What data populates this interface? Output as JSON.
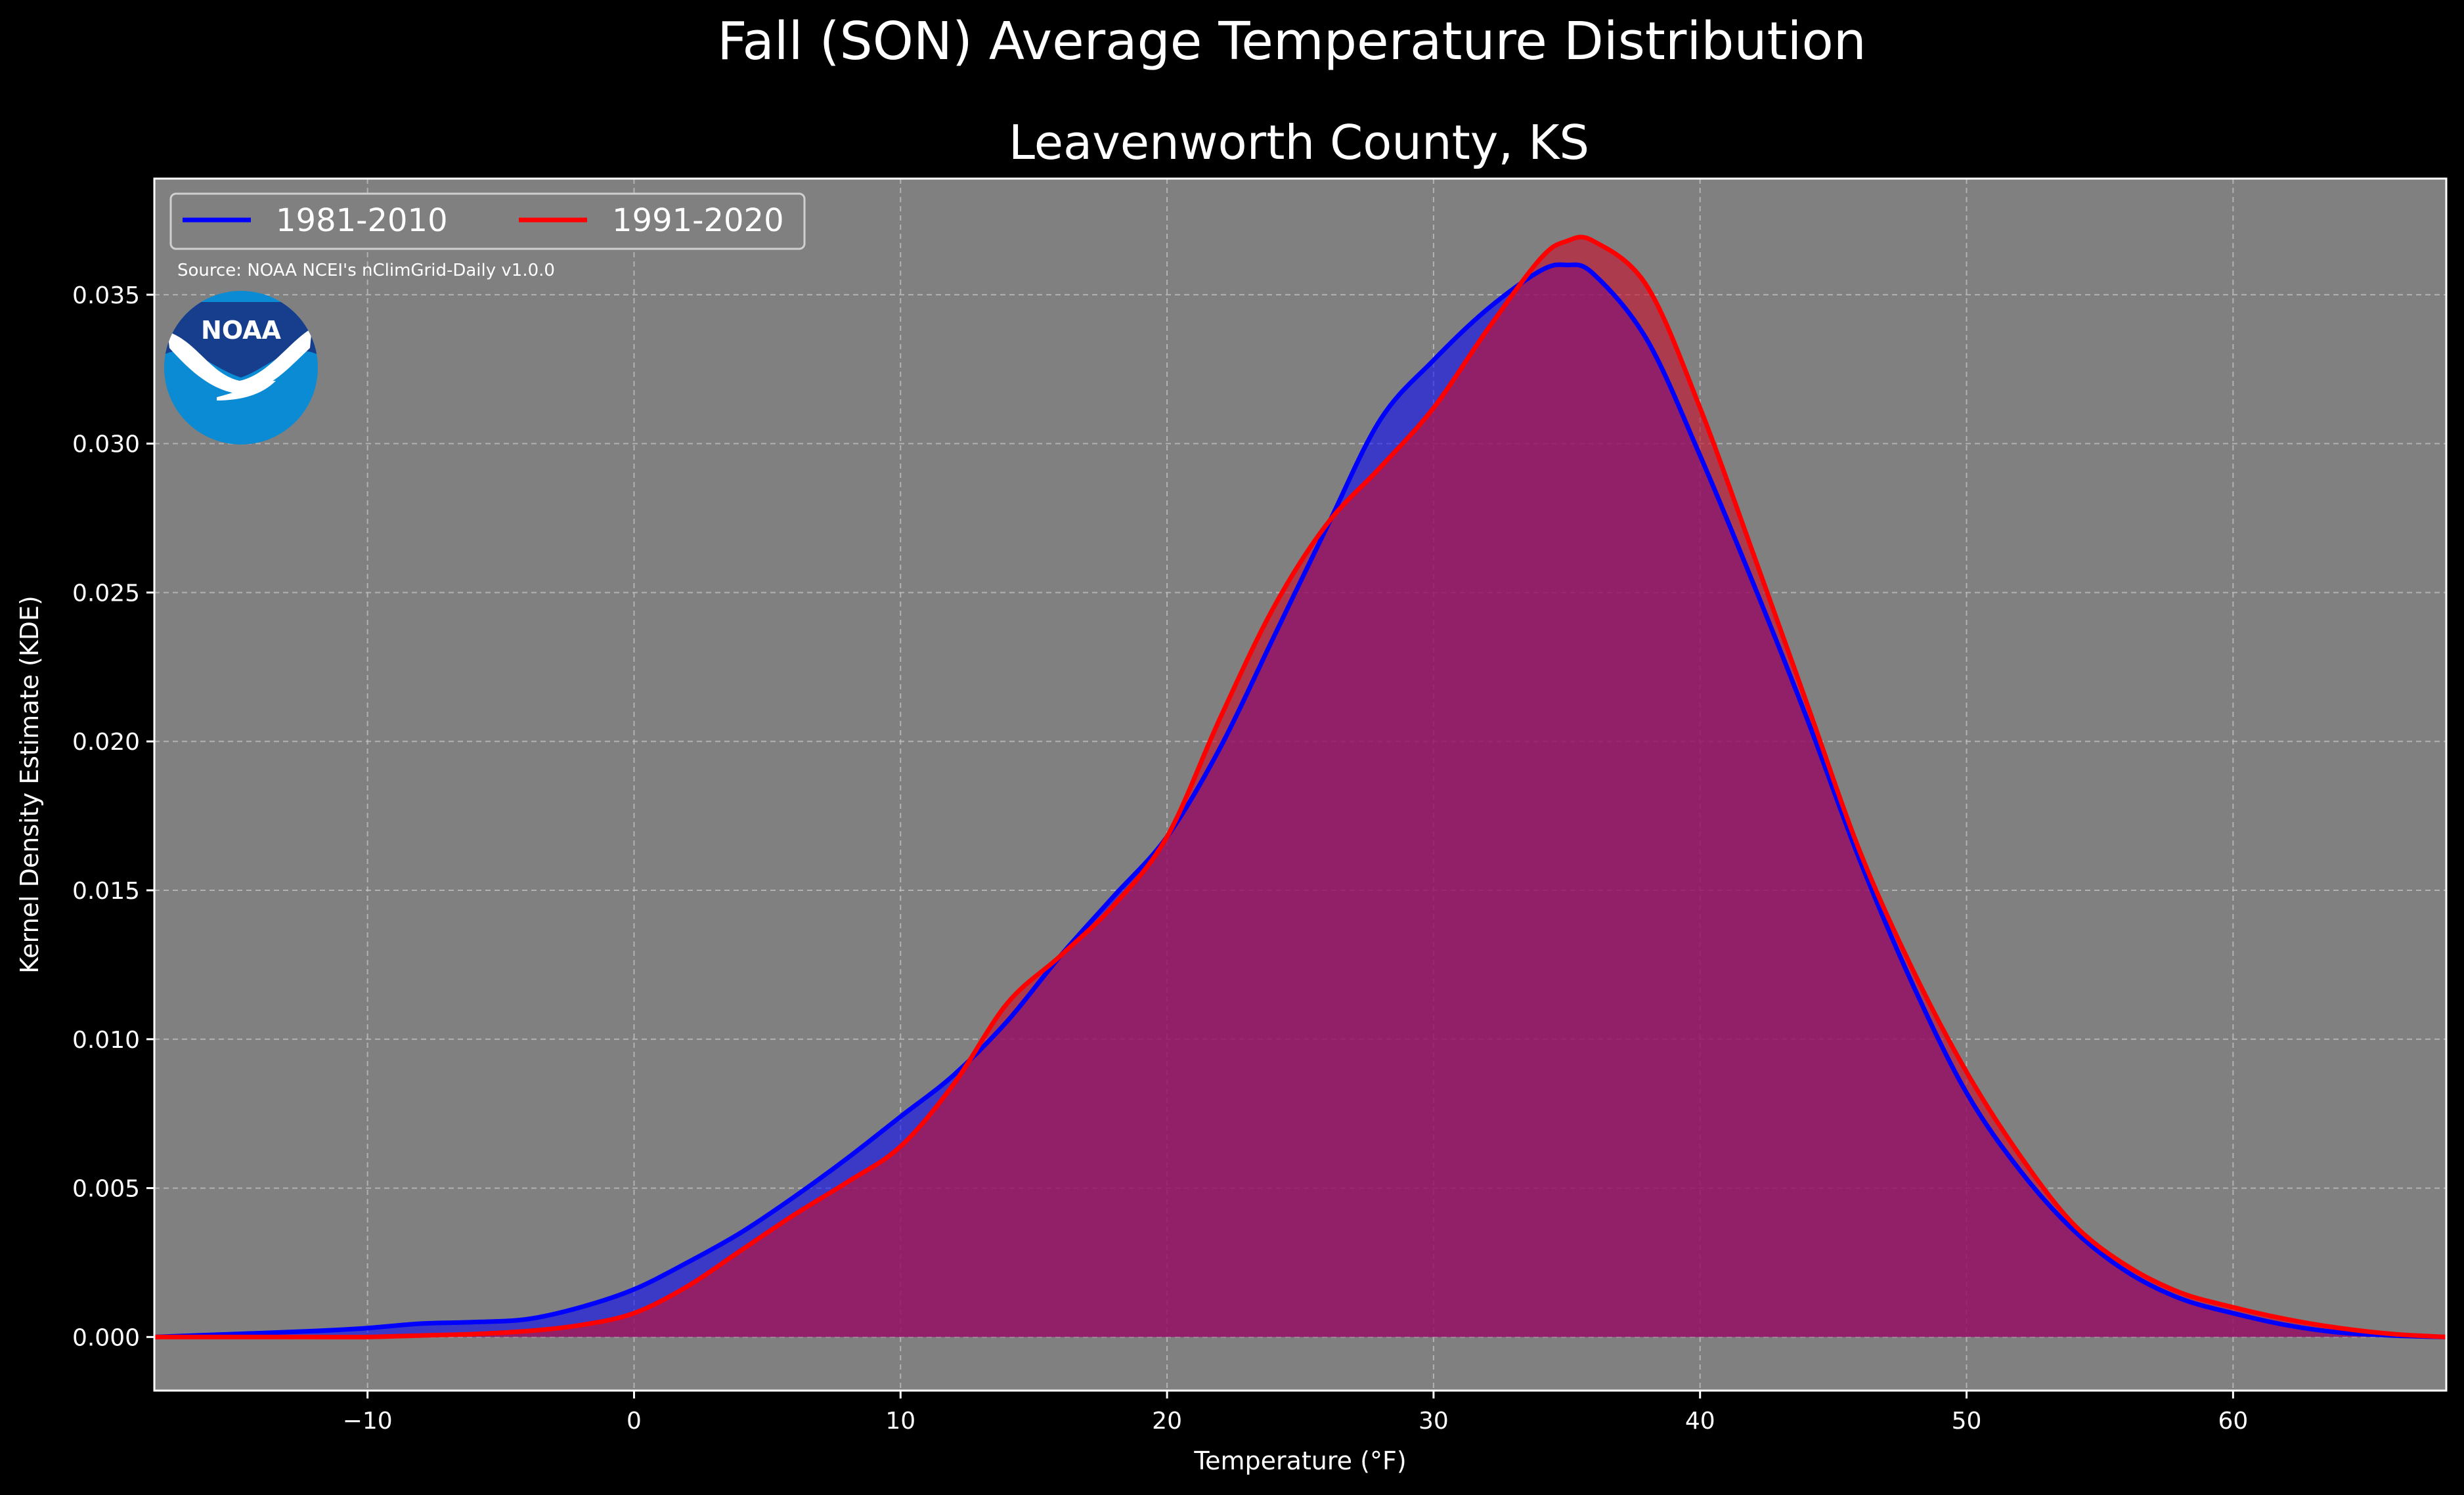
{
  "chart_data": {
    "type": "area",
    "title": "Fall (SON) Average Temperature Distribution",
    "subtitle": "Leavenworth County, KS",
    "xlabel": "Temperature (°F)",
    "ylabel": "Kernel Density Estimate (KDE)",
    "xlim": [
      -18,
      68
    ],
    "ylim": [
      -0.0018,
      0.0389
    ],
    "x_ticks": [
      -10,
      0,
      10,
      20,
      30,
      40,
      50,
      60
    ],
    "x_tick_labels": [
      "−10",
      "0",
      "10",
      "20",
      "30",
      "40",
      "50",
      "60"
    ],
    "y_ticks": [
      0,
      0.005,
      0.01,
      0.015,
      0.02,
      0.025,
      0.03,
      0.035
    ],
    "y_tick_labels": [
      "0.000",
      "0.005",
      "0.010",
      "0.015",
      "0.020",
      "0.025",
      "0.030",
      "0.035"
    ],
    "grid": true,
    "background_color": "#808080",
    "legend_placement": "top-left",
    "annotation": "Source: NOAA NCEI's nClimGrid-Daily v1.0.0",
    "logo_text": "NOAA",
    "series": [
      {
        "name": "1981-2010",
        "color": "#0000ff",
        "fill": "#0000ff",
        "x": [
          -18,
          -15,
          -12,
          -10,
          -8,
          -6,
          -4,
          -2,
          0,
          2,
          4,
          6,
          8,
          10,
          12,
          14,
          16,
          18,
          20,
          22,
          24,
          26,
          28,
          30,
          32,
          34,
          35,
          36,
          38,
          40,
          42,
          44,
          46,
          48,
          50,
          52,
          54,
          56,
          58,
          60,
          62,
          64,
          66,
          68
        ],
        "y": [
          0,
          0.0001,
          0.0002,
          0.0003,
          0.00045,
          0.0005,
          0.0006,
          0.001,
          0.0016,
          0.0025,
          0.0035,
          0.0047,
          0.006,
          0.0074,
          0.0088,
          0.0106,
          0.0128,
          0.0148,
          0.0168,
          0.0198,
          0.0235,
          0.0272,
          0.0308,
          0.0328,
          0.0345,
          0.0358,
          0.036,
          0.0357,
          0.0335,
          0.0296,
          0.0253,
          0.0208,
          0.016,
          0.0118,
          0.0082,
          0.0056,
          0.0036,
          0.0022,
          0.0013,
          0.0008,
          0.0004,
          0.00015,
          5e-05,
          0
        ]
      },
      {
        "name": "1991-2020",
        "color": "#ff0000",
        "fill": "#c8102e",
        "x": [
          -18,
          -15,
          -12,
          -10,
          -8,
          -6,
          -4,
          -2,
          0,
          2,
          4,
          6,
          8,
          10,
          12,
          14,
          16,
          18,
          20,
          22,
          24,
          26,
          28,
          30,
          32,
          34,
          35,
          36,
          38,
          40,
          42,
          44,
          46,
          48,
          50,
          52,
          54,
          56,
          58,
          60,
          62,
          64,
          66,
          68
        ],
        "y": [
          0,
          0,
          0,
          0,
          5e-05,
          0.0001,
          0.0002,
          0.0004,
          0.0008,
          0.0017,
          0.0029,
          0.0041,
          0.0052,
          0.0064,
          0.0085,
          0.0112,
          0.0128,
          0.0145,
          0.0168,
          0.0208,
          0.0245,
          0.0273,
          0.0292,
          0.0312,
          0.0338,
          0.0362,
          0.0368,
          0.0368,
          0.0353,
          0.0312,
          0.0263,
          0.0213,
          0.0163,
          0.0123,
          0.0089,
          0.0061,
          0.0038,
          0.0024,
          0.0015,
          0.001,
          0.0006,
          0.0003,
          0.0001,
          0
        ]
      }
    ]
  }
}
